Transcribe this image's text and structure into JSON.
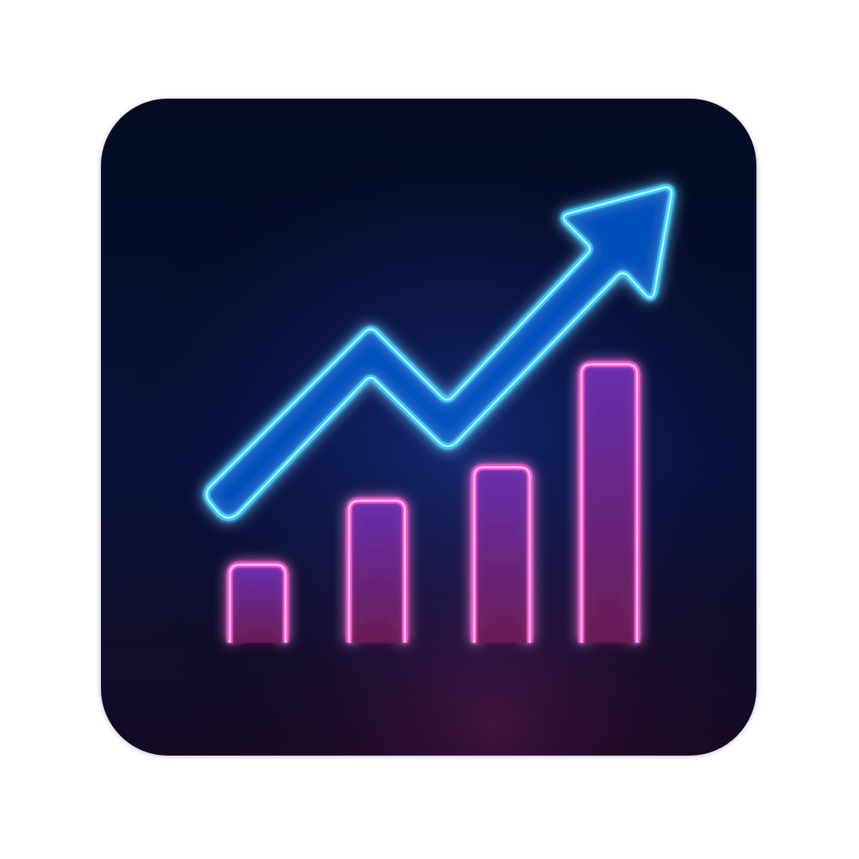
{
  "icon": {
    "name": "growth-chart-icon",
    "style": "neon",
    "colors": {
      "page_background": "#ffffff",
      "tile_top": "#040b22",
      "tile_bottom": "#140a22",
      "tile_glow": "#1f3fa8",
      "arrow_neon": "#34c8ff",
      "arrow_core": "#b9f4ff",
      "arrow_fill": "#0a58c8",
      "bar_neon": "#ff4fd0",
      "bar_core": "#ffc4f2",
      "bar_fill_top": "#6a2fb0",
      "bar_fill_bottom": "#6a1c55",
      "baseline": "#ff3f9f"
    },
    "bars": {
      "count": 4,
      "relative_heights": [
        0.28,
        0.51,
        0.63,
        1.0
      ],
      "trend": "increasing"
    },
    "arrow": {
      "direction": "up-right",
      "path_shape": "rise-dip-rise"
    }
  }
}
